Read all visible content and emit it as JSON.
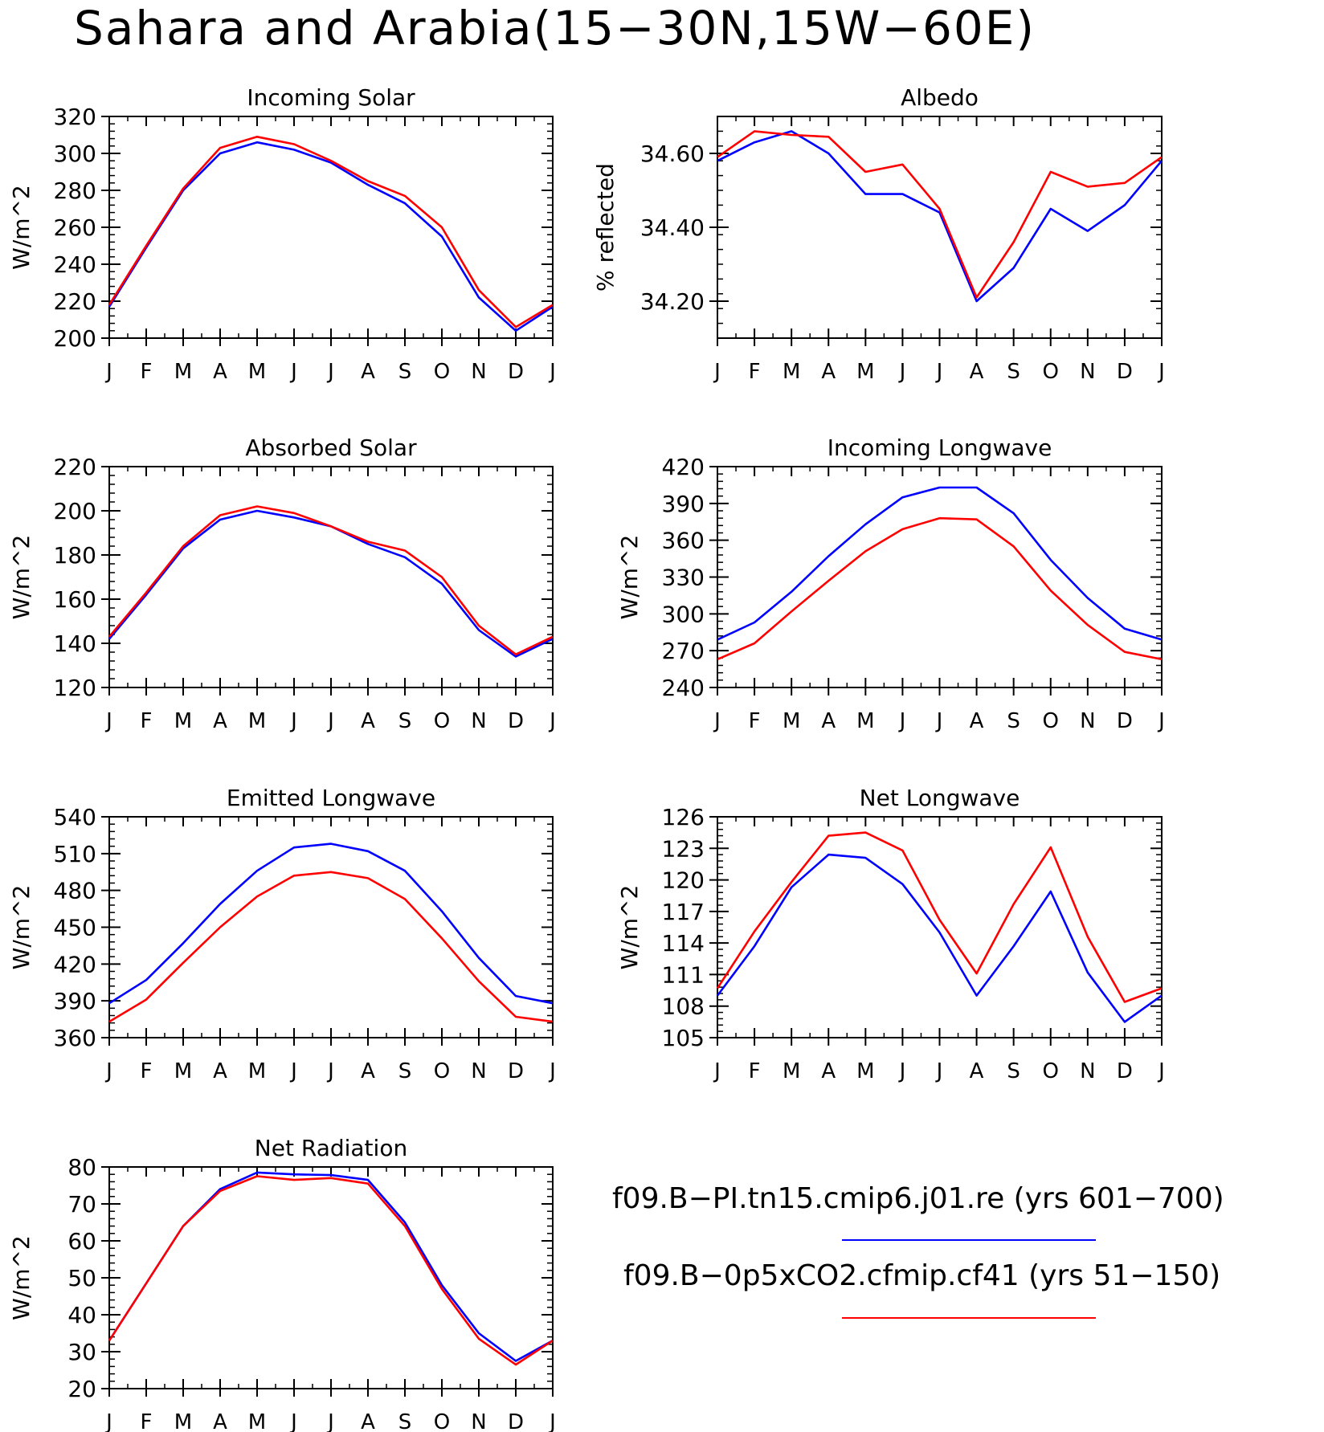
{
  "page": {
    "title": "Sahara and Arabia(15−30N,15W−60E)"
  },
  "legend": {
    "entries": [
      {
        "label": "f09.B−PI.tn15.cmip6.j01.re (yrs 601−700)",
        "color": "#0000ff"
      },
      {
        "label": "f09.B−0p5xCO2.cfmip.cf41 (yrs 51−150)",
        "color": "#ff0000"
      }
    ]
  },
  "chart_data": [
    {
      "type": "line",
      "title": "Incoming Solar",
      "ylabel": "W/m^2",
      "categories": [
        "J",
        "F",
        "M",
        "A",
        "M",
        "J",
        "J",
        "A",
        "S",
        "O",
        "N",
        "D",
        "J"
      ],
      "ylim": [
        200,
        320
      ],
      "yticks": [
        200,
        220,
        240,
        260,
        280,
        300,
        320
      ],
      "ytick_labels": [
        "200",
        "220",
        "240",
        "260",
        "280",
        "300",
        "320"
      ],
      "series": [
        {
          "color": "#0000ff",
          "values": [
            217,
            249,
            280,
            300,
            306,
            302,
            295,
            283,
            273,
            255,
            222,
            204,
            217
          ]
        },
        {
          "color": "#ff0000",
          "values": [
            218,
            250,
            281,
            303,
            309,
            305,
            296,
            285,
            277,
            260,
            226,
            206,
            218
          ]
        }
      ]
    },
    {
      "type": "line",
      "title": "Albedo",
      "ylabel": "% reflected",
      "categories": [
        "J",
        "F",
        "M",
        "A",
        "M",
        "J",
        "J",
        "A",
        "S",
        "O",
        "N",
        "D",
        "J"
      ],
      "ylim": [
        34.1,
        34.7
      ],
      "yticks": [
        34.2,
        34.4,
        34.6
      ],
      "ytick_labels": [
        "34.20",
        "34.40",
        "34.60"
      ],
      "series": [
        {
          "color": "#0000ff",
          "values": [
            34.58,
            34.63,
            34.66,
            34.6,
            34.49,
            34.49,
            34.44,
            34.2,
            34.29,
            34.45,
            34.39,
            34.46,
            34.58
          ]
        },
        {
          "color": "#ff0000",
          "values": [
            34.59,
            34.66,
            34.65,
            34.645,
            34.55,
            34.57,
            34.45,
            34.21,
            34.36,
            34.55,
            34.51,
            34.52,
            34.59
          ]
        }
      ]
    },
    {
      "type": "line",
      "title": "Absorbed Solar",
      "ylabel": "W/m^2",
      "categories": [
        "J",
        "F",
        "M",
        "A",
        "M",
        "J",
        "J",
        "A",
        "S",
        "O",
        "N",
        "D",
        "J"
      ],
      "ylim": [
        120,
        220
      ],
      "yticks": [
        120,
        140,
        160,
        180,
        200,
        220
      ],
      "ytick_labels": [
        "120",
        "140",
        "160",
        "180",
        "200",
        "220"
      ],
      "series": [
        {
          "color": "#0000ff",
          "values": [
            142,
            162,
            183,
            196,
            200,
            197,
            193,
            185,
            179,
            167,
            146,
            134,
            142
          ]
        },
        {
          "color": "#ff0000",
          "values": [
            143,
            163,
            184,
            198,
            202,
            199,
            193,
            186,
            182,
            170,
            148,
            135,
            143
          ]
        }
      ]
    },
    {
      "type": "line",
      "title": "Incoming Longwave",
      "ylabel": "W/m^2",
      "categories": [
        "J",
        "F",
        "M",
        "A",
        "M",
        "J",
        "J",
        "A",
        "S",
        "O",
        "N",
        "D",
        "J"
      ],
      "ylim": [
        240,
        420
      ],
      "yticks": [
        240,
        270,
        300,
        330,
        360,
        390,
        420
      ],
      "ytick_labels": [
        "240",
        "270",
        "300",
        "330",
        "360",
        "390",
        "420"
      ],
      "series": [
        {
          "color": "#0000ff",
          "values": [
            279,
            293,
            318,
            347,
            373,
            395,
            403,
            403,
            382,
            344,
            313,
            288,
            279
          ]
        },
        {
          "color": "#ff0000",
          "values": [
            263,
            276,
            302,
            327,
            351,
            369,
            378,
            377,
            355,
            319,
            291,
            269,
            263
          ]
        }
      ]
    },
    {
      "type": "line",
      "title": "Emitted Longwave",
      "ylabel": "W/m^2",
      "categories": [
        "J",
        "F",
        "M",
        "A",
        "M",
        "J",
        "J",
        "A",
        "S",
        "O",
        "N",
        "D",
        "J"
      ],
      "ylim": [
        360,
        540
      ],
      "yticks": [
        360,
        390,
        420,
        450,
        480,
        510,
        540
      ],
      "ytick_labels": [
        "360",
        "390",
        "420",
        "450",
        "480",
        "510",
        "540"
      ],
      "series": [
        {
          "color": "#0000ff",
          "values": [
            388,
            407,
            437,
            469,
            496,
            515,
            518,
            512,
            496,
            463,
            425,
            394,
            388
          ]
        },
        {
          "color": "#ff0000",
          "values": [
            373,
            391,
            421,
            450,
            475,
            492,
            495,
            490,
            473,
            441,
            406,
            377,
            373
          ]
        }
      ]
    },
    {
      "type": "line",
      "title": "Net Longwave",
      "ylabel": "W/m^2",
      "categories": [
        "J",
        "F",
        "M",
        "A",
        "M",
        "J",
        "J",
        "A",
        "S",
        "O",
        "N",
        "D",
        "J"
      ],
      "ylim": [
        105,
        126
      ],
      "yticks": [
        105,
        108,
        111,
        114,
        117,
        120,
        123,
        126
      ],
      "ytick_labels": [
        "105",
        "108",
        "111",
        "114",
        "117",
        "120",
        "123",
        "126"
      ],
      "series": [
        {
          "color": "#0000ff",
          "values": [
            109.0,
            113.7,
            119.3,
            122.4,
            122.1,
            119.6,
            115.0,
            109.0,
            113.7,
            118.9,
            111.2,
            106.5,
            109.0
          ]
        },
        {
          "color": "#ff0000",
          "values": [
            109.7,
            115.1,
            119.8,
            124.2,
            124.5,
            122.8,
            116.2,
            111.1,
            117.7,
            123.1,
            114.6,
            108.4,
            109.7
          ]
        }
      ]
    },
    {
      "type": "line",
      "title": "Net Radiation",
      "ylabel": "W/m^2",
      "categories": [
        "J",
        "F",
        "M",
        "A",
        "M",
        "J",
        "J",
        "A",
        "S",
        "O",
        "N",
        "D",
        "J"
      ],
      "ylim": [
        20,
        80
      ],
      "yticks": [
        20,
        30,
        40,
        50,
        60,
        70,
        80
      ],
      "ytick_labels": [
        "20",
        "30",
        "40",
        "50",
        "60",
        "70",
        "80"
      ],
      "series": [
        {
          "color": "#0000ff",
          "values": [
            33,
            48.5,
            64,
            74,
            78.5,
            78,
            77.8,
            76.5,
            65,
            48,
            35,
            27.5,
            33
          ]
        },
        {
          "color": "#ff0000",
          "values": [
            33,
            48.5,
            64,
            73.5,
            77.5,
            76.5,
            77,
            75.5,
            64,
            47,
            33.5,
            26.5,
            33
          ]
        }
      ]
    }
  ]
}
